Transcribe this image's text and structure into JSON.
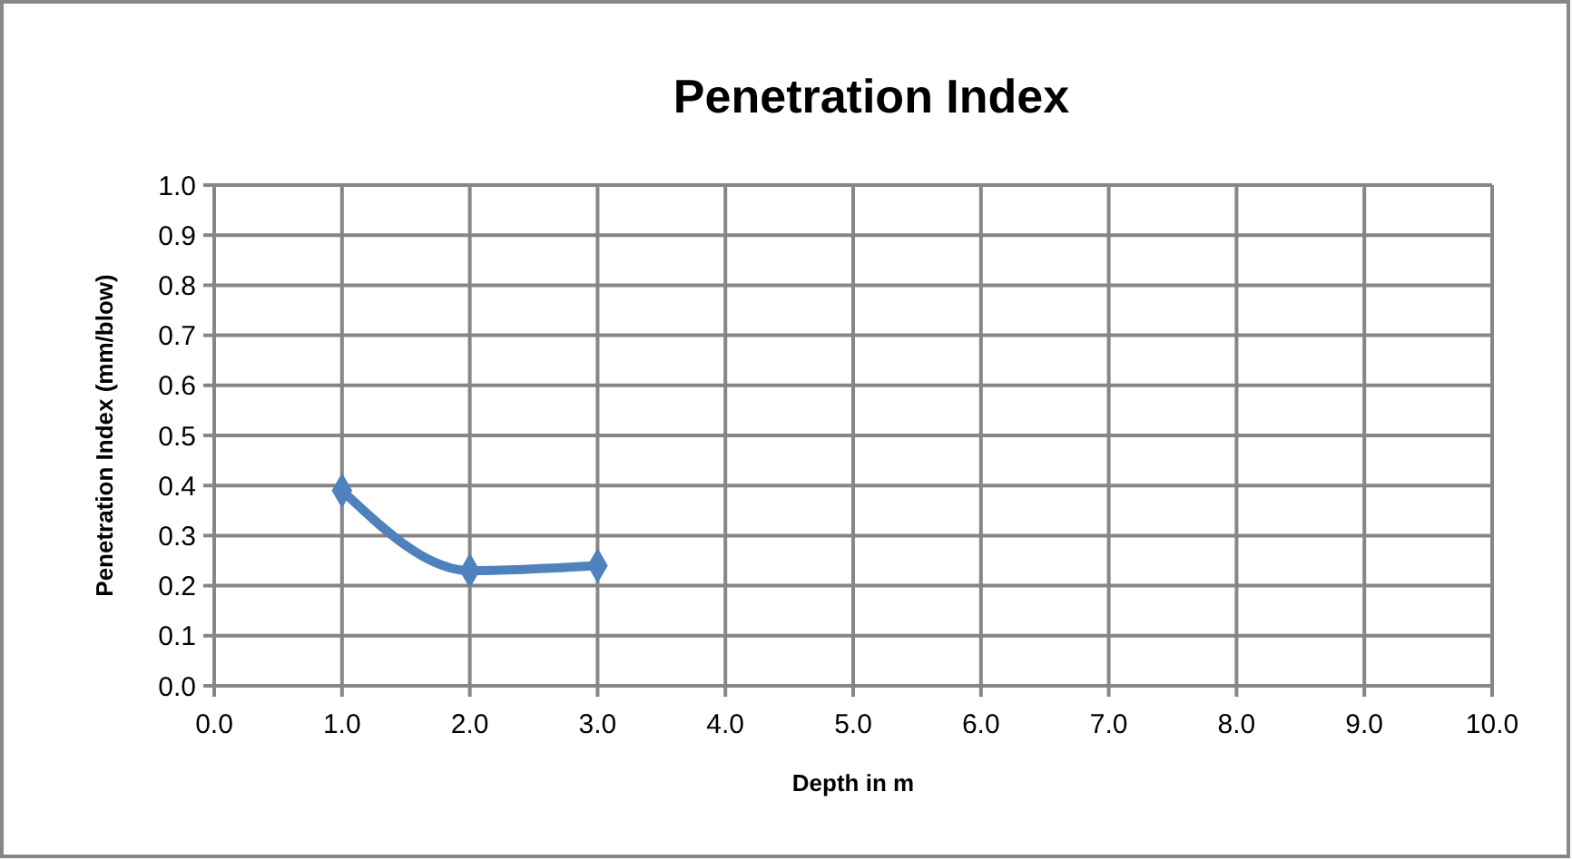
{
  "chart_data": {
    "type": "line",
    "title": "Penetration Index",
    "xlabel": "Depth in m",
    "ylabel": "Penetration Index (mm/blow)",
    "x": [
      1,
      2,
      3
    ],
    "series": [
      {
        "color": "#4f81bd",
        "values": [
          0.39,
          0.23,
          0.24
        ]
      }
    ],
    "xlim": [
      0,
      10
    ],
    "ylim": [
      0,
      1
    ],
    "xticks": [
      {
        "value": 0,
        "label": "0.0"
      },
      {
        "value": 1,
        "label": "1.0"
      },
      {
        "value": 2,
        "label": "2.0"
      },
      {
        "value": 3,
        "label": "3.0"
      },
      {
        "value": 4,
        "label": "4.0"
      },
      {
        "value": 5,
        "label": "5.0"
      },
      {
        "value": 6,
        "label": "6.0"
      },
      {
        "value": 7,
        "label": "7.0"
      },
      {
        "value": 8,
        "label": "8.0"
      },
      {
        "value": 9,
        "label": "9.0"
      },
      {
        "value": 10,
        "label": "10.0"
      }
    ],
    "yticks": [
      {
        "value": 0,
        "label": "0.0"
      },
      {
        "value": 0.1,
        "label": "0.1"
      },
      {
        "value": 0.2,
        "label": "0.2"
      },
      {
        "value": 0.3,
        "label": "0.3"
      },
      {
        "value": 0.4,
        "label": "0.4"
      },
      {
        "value": 0.5,
        "label": "0.5"
      },
      {
        "value": 0.6,
        "label": "0.6"
      },
      {
        "value": 0.7,
        "label": "0.7"
      },
      {
        "value": 0.8,
        "label": "0.8"
      },
      {
        "value": 0.9,
        "label": "0.9"
      },
      {
        "value": 1,
        "label": "1.0"
      }
    ],
    "grid": true,
    "marker": "diamond",
    "line_style": "solid"
  }
}
